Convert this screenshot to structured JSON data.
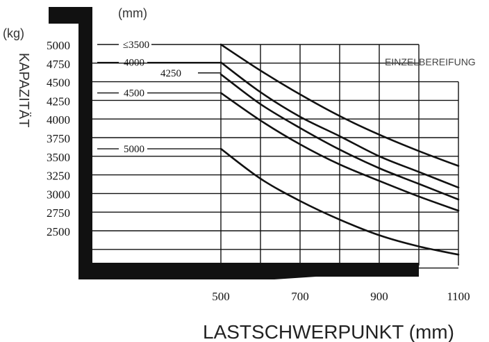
{
  "chart_data": {
    "type": "line",
    "y_unit": "(kg)",
    "ylabel": "KAPAZITÄT",
    "xlabel": "LASTSCHWERPUNKT (mm)",
    "series_unit": "(mm)",
    "annotation": "EINZELBEREIFUNG",
    "y_ticks": [
      5000,
      4750,
      4500,
      4250,
      4000,
      3750,
      3500,
      3250,
      3000,
      2750,
      2500
    ],
    "x_ticks": [
      500,
      700,
      900,
      1100
    ],
    "xlim": [
      500,
      1100
    ],
    "ylim": [
      2250,
      5000
    ],
    "series": [
      {
        "name": "≤3500",
        "x": [
          500,
          600,
          700,
          800,
          900,
          1000,
          1100
        ],
        "y": [
          5000,
          4650,
          4330,
          4040,
          3790,
          3570,
          3370
        ]
      },
      {
        "name": "4000",
        "x": [
          500,
          600,
          700,
          800,
          900,
          1000,
          1100
        ],
        "y": [
          4760,
          4360,
          4030,
          3770,
          3500,
          3290,
          3080
        ]
      },
      {
        "name": "4250",
        "x": [
          500,
          600,
          700,
          800,
          900,
          1000,
          1100
        ],
        "y": [
          4600,
          4200,
          3880,
          3590,
          3340,
          3130,
          2920
        ]
      },
      {
        "name": "4500",
        "x": [
          500,
          600,
          700,
          800,
          900,
          1000,
          1100
        ],
        "y": [
          4350,
          3980,
          3660,
          3390,
          3170,
          2960,
          2770
        ]
      },
      {
        "name": "5000",
        "x": [
          500,
          600,
          700,
          800,
          900,
          1000,
          1100
        ],
        "y": [
          3600,
          3200,
          2900,
          2650,
          2440,
          2290,
          2180
        ]
      }
    ]
  }
}
